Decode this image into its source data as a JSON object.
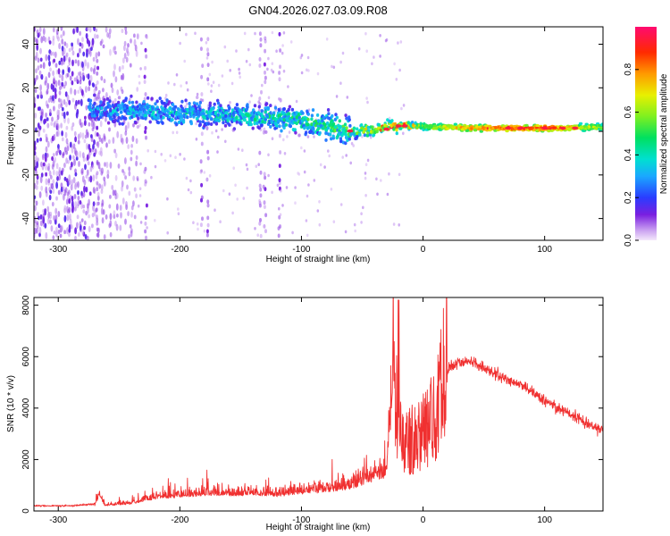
{
  "title": "GN04.2026.027.03.09.R08",
  "colors": {
    "snr_line": "#f03030",
    "spectrogram_base": "#7a1fe0",
    "frame": "#000000"
  },
  "colorbar": {
    "label": "Normalized spectral amplitude",
    "ticks": [
      "0.0",
      "0.2",
      "0.4",
      "0.6",
      "0.8"
    ],
    "range": [
      0,
      1
    ]
  },
  "chart_data": [
    {
      "type": "heatmap",
      "title": "",
      "xlabel": "Height of straight line (km)",
      "ylabel": "Frequency (Hz)",
      "xlim": [
        -320,
        148
      ],
      "ylim": [
        -50,
        48
      ],
      "xticks": [
        "-300",
        "-200",
        "-100",
        "0",
        "100"
      ],
      "xtick_values": [
        -300,
        -200,
        -100,
        0,
        100
      ],
      "yticks": [
        "40",
        "20",
        "0",
        "-20",
        "-40"
      ],
      "ytick_values": [
        40,
        20,
        0,
        -20,
        -40
      ],
      "ridge": {
        "x": [
          -275,
          -230,
          -150,
          -100,
          -60,
          -40,
          -20,
          0,
          50,
          100,
          148
        ],
        "frequency_hz": [
          10,
          9,
          7,
          5,
          0,
          1,
          3,
          2,
          1.5,
          1.5,
          2
        ],
        "peak_amplitude": [
          0.3,
          0.35,
          0.4,
          0.45,
          0.5,
          0.7,
          0.9,
          0.6,
          0.9,
          0.95,
          0.6
        ]
      }
    },
    {
      "type": "line",
      "title": "",
      "xlabel": "Height of straight line (km)",
      "ylabel": "SNR (10 * v/v)",
      "xlim": [
        -320,
        148
      ],
      "ylim": [
        0,
        8300
      ],
      "xticks": [
        "-300",
        "-200",
        "-100",
        "0",
        "100"
      ],
      "xtick_values": [
        -300,
        -200,
        -100,
        0,
        100
      ],
      "yticks": [
        "0",
        "2000",
        "4000",
        "6000",
        "8000"
      ],
      "ytick_values": [
        0,
        2000,
        4000,
        6000,
        8000
      ],
      "series": [
        {
          "name": "SNR",
          "x": [
            -320,
            -290,
            -270,
            -266,
            -262,
            -240,
            -220,
            -200,
            -180,
            -160,
            -140,
            -120,
            -100,
            -80,
            -60,
            -50,
            -40,
            -30,
            -25,
            -22,
            -18,
            -10,
            0,
            10,
            20,
            30,
            40,
            60,
            80,
            100,
            120,
            148
          ],
          "y": [
            200,
            200,
            280,
            900,
            300,
            400,
            700,
            800,
            900,
            900,
            900,
            850,
            1000,
            1100,
            1300,
            1500,
            1800,
            2000,
            6300,
            3800,
            2400,
            2500,
            2800,
            3300,
            5500,
            5800,
            5800,
            5300,
            4900,
            4300,
            3800,
            3100
          ]
        }
      ]
    }
  ]
}
